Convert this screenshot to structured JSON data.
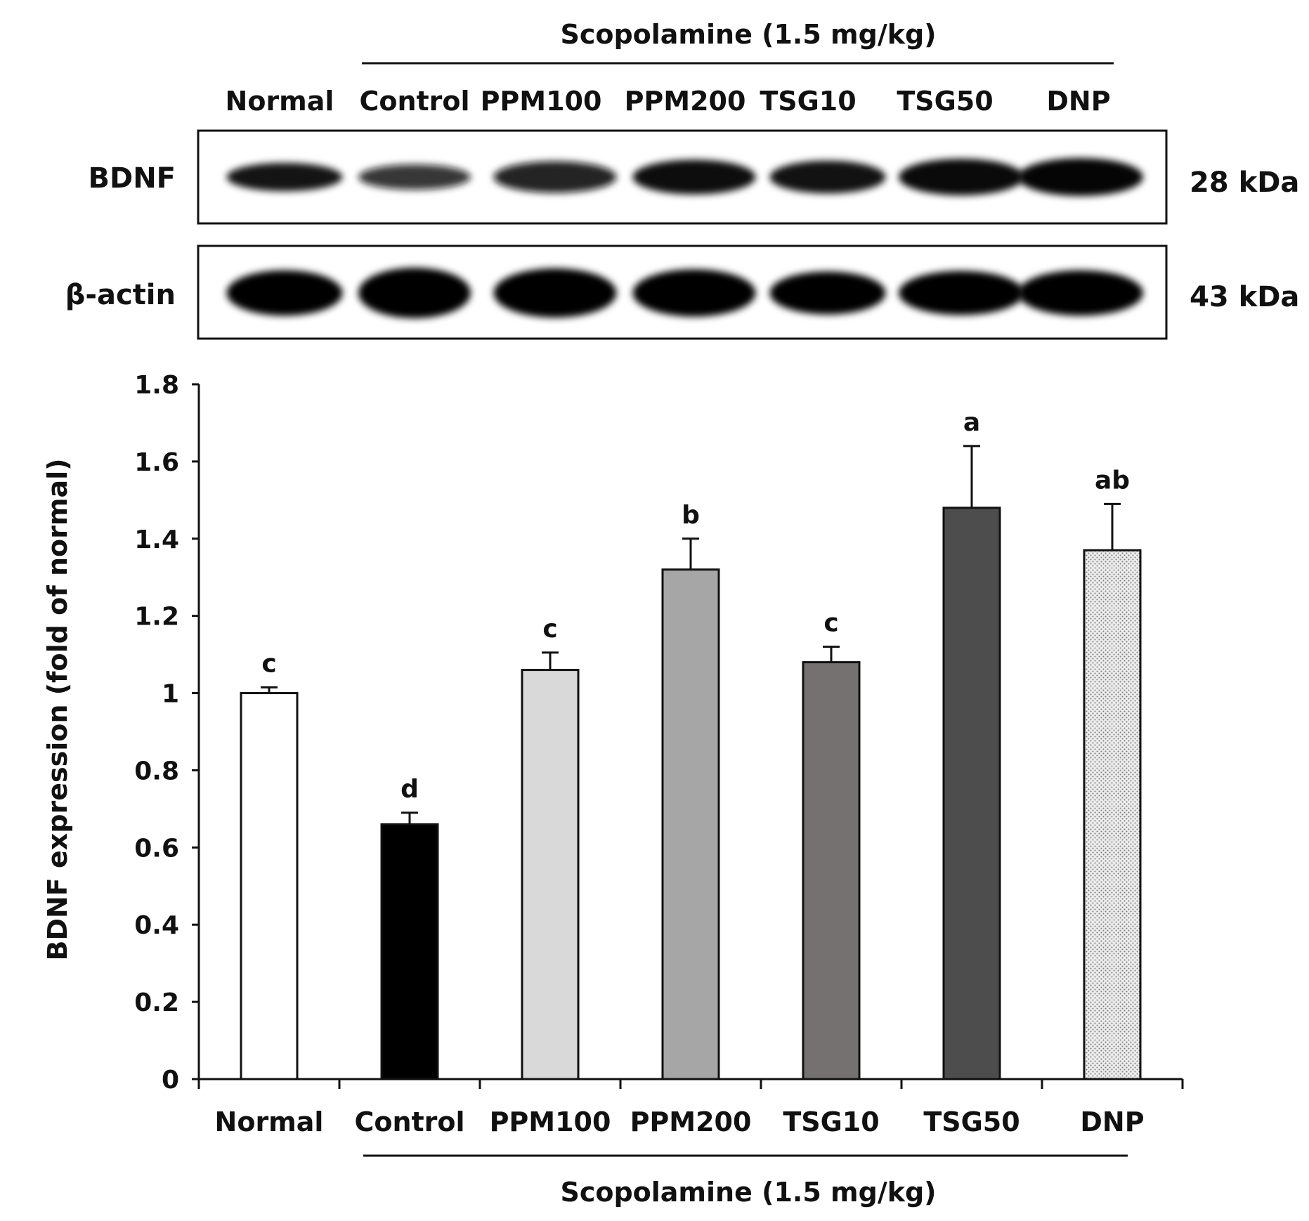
{
  "blot": {
    "group_label": "Scopolamine (1.5 mg/kg)",
    "lanes": [
      "Normal",
      "Control",
      "PPM100",
      "PPM200",
      "TSG10",
      "TSG50",
      "DNP"
    ],
    "rows": [
      {
        "label": "BDNF",
        "size": "28 kDa",
        "intensity": [
          0.82,
          0.62,
          0.8,
          0.88,
          0.84,
          0.92,
          0.95
        ],
        "thickness": [
          0.45,
          0.4,
          0.5,
          0.55,
          0.52,
          0.58,
          0.6
        ]
      },
      {
        "label": "β-actin",
        "size": "43 kDa",
        "intensity": [
          1,
          1,
          1,
          1,
          1,
          1,
          1
        ],
        "thickness": [
          0.72,
          0.8,
          0.78,
          0.75,
          0.68,
          0.7,
          0.72
        ]
      }
    ]
  },
  "chart_data": {
    "type": "bar",
    "categories": [
      "Normal",
      "Control",
      "PPM100",
      "PPM200",
      "TSG10",
      "TSG50",
      "DNP"
    ],
    "values": [
      1.0,
      0.66,
      1.06,
      1.32,
      1.08,
      1.48,
      1.37
    ],
    "errors": [
      0.015,
      0.03,
      0.045,
      0.08,
      0.04,
      0.16,
      0.12
    ],
    "significance": [
      "c",
      "d",
      "c",
      "b",
      "c",
      "a",
      "ab"
    ],
    "bar_colors": [
      "#ffffff",
      "#000000",
      "#d9d9d9",
      "#a6a6a6",
      "#757171",
      "#4d4d4d",
      "#e0e0e0"
    ],
    "bar_patterns": [
      "solid",
      "solid",
      "solid",
      "solid",
      "solid",
      "solid",
      "dotted"
    ],
    "ylabel": "BDNF expression (fold of normal)",
    "xlabel": "",
    "group_label": "Scopolamine (1.5 mg/kg)",
    "ylim": [
      0,
      1.8
    ],
    "yticks": [
      0,
      0.2,
      0.4,
      0.6,
      0.8,
      1,
      1.2,
      1.4,
      1.6,
      1.8
    ],
    "ytick_labels": [
      "0",
      "0.2",
      "0.4",
      "0.6",
      "0.8",
      "1",
      "1.2",
      "1.4",
      "1.6",
      "1.8"
    ],
    "grid": false,
    "legend": "none"
  }
}
